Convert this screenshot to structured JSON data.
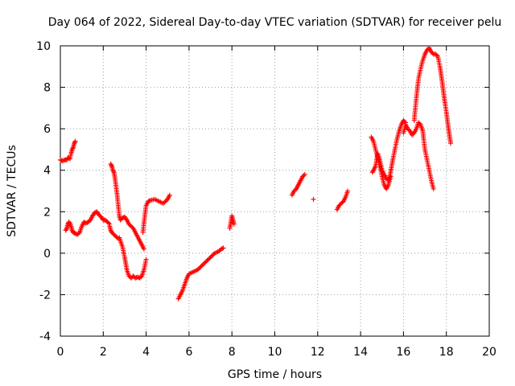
{
  "chart_data": {
    "type": "scatter",
    "title": "Day 064 of 2022, Sidereal Day-to-day VTEC variation (SDTVAR) for receiver pelu",
    "xlabel": "GPS time / hours",
    "ylabel": "SDTVAR / TECUs",
    "xlim": [
      0,
      20
    ],
    "ylim": [
      -4,
      10
    ],
    "xticks": [
      "0",
      "2",
      "4",
      "6",
      "8",
      "10",
      "12",
      "14",
      "16",
      "18",
      "20"
    ],
    "yticks": [
      "-4",
      "-2",
      "0",
      "2",
      "4",
      "6",
      "8",
      "10"
    ],
    "grid": true,
    "marker": "+",
    "color": "#ff0000",
    "series": [
      {
        "name": "SDTVAR",
        "segments": [
          {
            "x": [
              0.0,
              0.1,
              0.2,
              0.3,
              0.35,
              0.45,
              0.5,
              0.55,
              0.6,
              0.65,
              0.7
            ],
            "y": [
              4.5,
              4.45,
              4.5,
              4.5,
              4.6,
              4.55,
              4.8,
              5.0,
              5.1,
              5.3,
              5.4
            ]
          },
          {
            "x": [
              0.25,
              0.3,
              0.35,
              0.4,
              0.45,
              0.5,
              0.55,
              0.6,
              0.7,
              0.8,
              0.9,
              1.0,
              1.1,
              1.2,
              1.3,
              1.4,
              1.5,
              1.6,
              1.7,
              1.8,
              1.9,
              2.0,
              2.1,
              2.2,
              2.3
            ],
            "y": [
              1.1,
              1.2,
              1.4,
              1.5,
              1.45,
              1.3,
              1.1,
              1.0,
              0.95,
              0.9,
              1.0,
              1.3,
              1.5,
              1.45,
              1.5,
              1.6,
              1.8,
              1.95,
              2.0,
              1.85,
              1.75,
              1.6,
              1.6,
              1.5,
              1.4
            ]
          },
          {
            "x": [
              2.3,
              2.35,
              2.4,
              2.45,
              2.5,
              2.55,
              2.6,
              2.65,
              2.7,
              2.75,
              2.8,
              2.9,
              3.0,
              3.1,
              3.2,
              3.3,
              3.4,
              3.5,
              3.6,
              3.7,
              3.8,
              3.9,
              4.0
            ],
            "y": [
              1.3,
              1.1,
              1.0,
              0.95,
              0.9,
              0.85,
              0.8,
              0.75,
              0.7,
              0.75,
              0.6,
              0.3,
              -0.2,
              -0.8,
              -1.1,
              -1.2,
              -1.1,
              -1.2,
              -1.15,
              -1.2,
              -1.1,
              -0.8,
              -0.3
            ]
          },
          {
            "x": [
              2.35,
              2.4,
              2.45,
              2.5,
              2.55,
              2.6,
              2.65,
              2.7,
              2.75,
              2.8,
              2.9,
              3.0,
              3.1,
              3.2,
              3.3,
              3.4,
              3.5,
              3.6,
              3.7,
              3.8,
              3.9
            ],
            "y": [
              4.3,
              4.2,
              4.0,
              3.9,
              3.6,
              3.2,
              2.8,
              2.3,
              1.8,
              1.6,
              1.7,
              1.75,
              1.6,
              1.4,
              1.3,
              1.2,
              1.0,
              0.8,
              0.6,
              0.4,
              0.2
            ]
          },
          {
            "x": [
              3.85,
              3.9,
              3.95,
              4.0,
              4.1,
              4.2,
              4.4,
              4.6,
              4.8,
              5.0,
              5.1
            ],
            "y": [
              1.0,
              1.5,
              1.9,
              2.3,
              2.5,
              2.55,
              2.6,
              2.5,
              2.4,
              2.6,
              2.8
            ]
          },
          {
            "x": [
              5.5,
              5.6,
              5.7,
              5.8,
              5.9,
              6.0,
              6.2,
              6.4,
              6.6,
              6.8,
              7.0,
              7.2,
              7.4,
              7.5,
              7.6
            ],
            "y": [
              -2.2,
              -2.0,
              -1.8,
              -1.5,
              -1.2,
              -1.0,
              -0.9,
              -0.8,
              -0.6,
              -0.4,
              -0.2,
              0.0,
              0.1,
              0.2,
              0.25
            ]
          },
          {
            "x": [
              7.9,
              7.95,
              8.0,
              8.05,
              8.1
            ],
            "y": [
              1.2,
              1.5,
              1.8,
              1.6,
              1.4
            ]
          },
          {
            "x": [
              10.8,
              10.9,
              11.0,
              11.1,
              11.2,
              11.3,
              11.4
            ],
            "y": [
              2.8,
              3.0,
              3.1,
              3.3,
              3.5,
              3.7,
              3.8
            ]
          },
          {
            "x": [
              11.8
            ],
            "y": [
              2.6
            ]
          },
          {
            "x": [
              12.9,
              13.0,
              13.1,
              13.2,
              13.3,
              13.4
            ],
            "y": [
              2.1,
              2.3,
              2.4,
              2.5,
              2.7,
              3.0
            ]
          },
          {
            "x": [
              14.5,
              14.6,
              14.7,
              14.8,
              14.9,
              15.0,
              15.1,
              15.2,
              15.3,
              15.4
            ],
            "y": [
              5.6,
              5.4,
              5.0,
              4.6,
              4.2,
              3.7,
              3.3,
              3.1,
              3.3,
              3.7
            ]
          },
          {
            "x": [
              14.55,
              14.6,
              14.7,
              14.8,
              14.9,
              15.0,
              15.1,
              15.2,
              15.3,
              15.4,
              15.5,
              15.6,
              15.7,
              15.8,
              15.9,
              16.0,
              16.1
            ],
            "y": [
              3.9,
              4.0,
              4.2,
              4.8,
              4.5,
              4.0,
              3.8,
              3.6,
              3.5,
              3.9,
              4.5,
              5.0,
              5.5,
              5.9,
              6.2,
              6.4,
              6.3
            ]
          },
          {
            "x": [
              16.0,
              16.1,
              16.2,
              16.3,
              16.4,
              16.5,
              16.6,
              16.7,
              16.8,
              16.9,
              17.0,
              17.1,
              17.2,
              17.3,
              17.4
            ],
            "y": [
              5.8,
              6.2,
              6.0,
              5.9,
              5.7,
              5.8,
              6.0,
              6.3,
              6.2,
              5.9,
              5.0,
              4.5,
              4.0,
              3.5,
              3.1
            ]
          },
          {
            "x": [
              16.5,
              16.6,
              16.7,
              16.8,
              16.9,
              17.0,
              17.1,
              17.2,
              17.3,
              17.4,
              17.5,
              17.6,
              17.7,
              17.8,
              17.9,
              18.0,
              18.1,
              18.2
            ],
            "y": [
              6.4,
              7.5,
              8.4,
              8.9,
              9.3,
              9.6,
              9.8,
              9.9,
              9.7,
              9.6,
              9.6,
              9.5,
              9.0,
              8.3,
              7.5,
              6.8,
              6.0,
              5.3
            ]
          }
        ]
      }
    ]
  }
}
